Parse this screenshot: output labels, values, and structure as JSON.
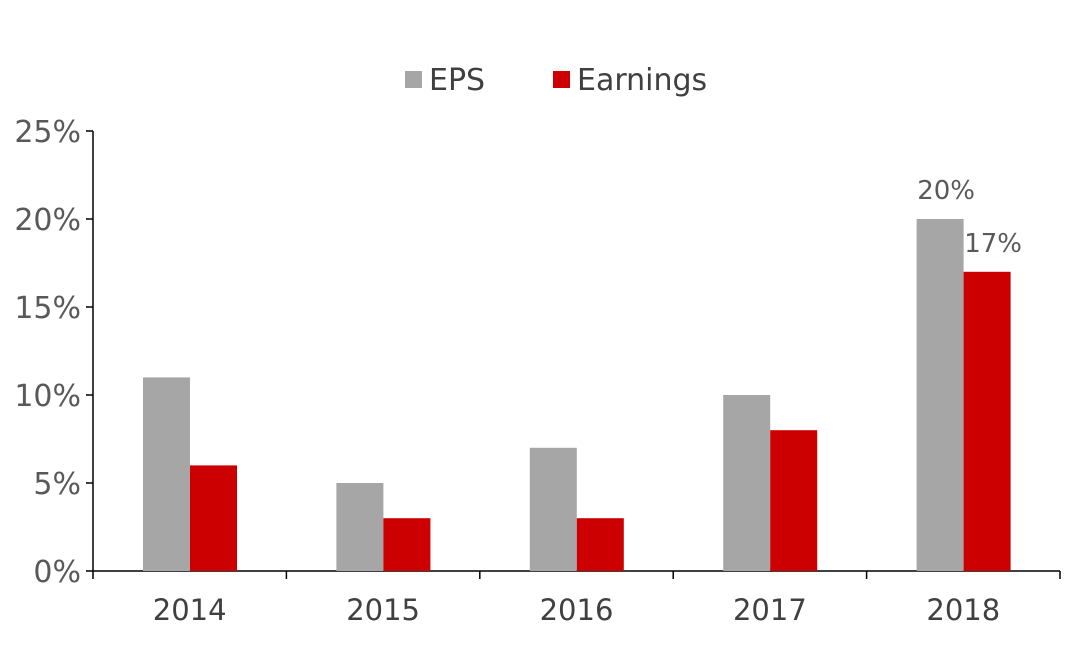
{
  "chart_data": {
    "type": "bar",
    "categories": [
      "2014",
      "2015",
      "2016",
      "2017",
      "2018"
    ],
    "series": [
      {
        "name": "EPS",
        "color": "#a6a6a6",
        "values": [
          11,
          5,
          7,
          10,
          20
        ]
      },
      {
        "name": "Earnings",
        "color": "#cc0000",
        "values": [
          6,
          3,
          3,
          8,
          17
        ]
      }
    ],
    "y_tick_labels": [
      "0%",
      "5%",
      "10%",
      "15%",
      "20%",
      "25%"
    ],
    "ylim": [
      0,
      25
    ],
    "y_unit": "%",
    "data_labels": [
      {
        "series": "EPS",
        "category": "2018",
        "text": "20%"
      },
      {
        "series": "Earnings",
        "category": "2018",
        "text": "17%"
      }
    ],
    "grid": false,
    "legend_position": "top-center"
  }
}
